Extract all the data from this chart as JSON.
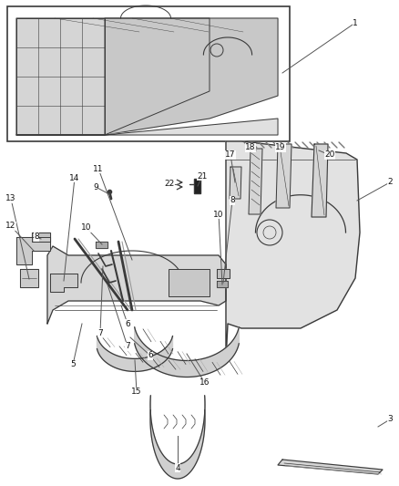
{
  "background_color": "#ffffff",
  "line_color": "#3a3a3a",
  "label_color": "#111111",
  "fig_width": 4.38,
  "fig_height": 5.33,
  "dpi": 100
}
